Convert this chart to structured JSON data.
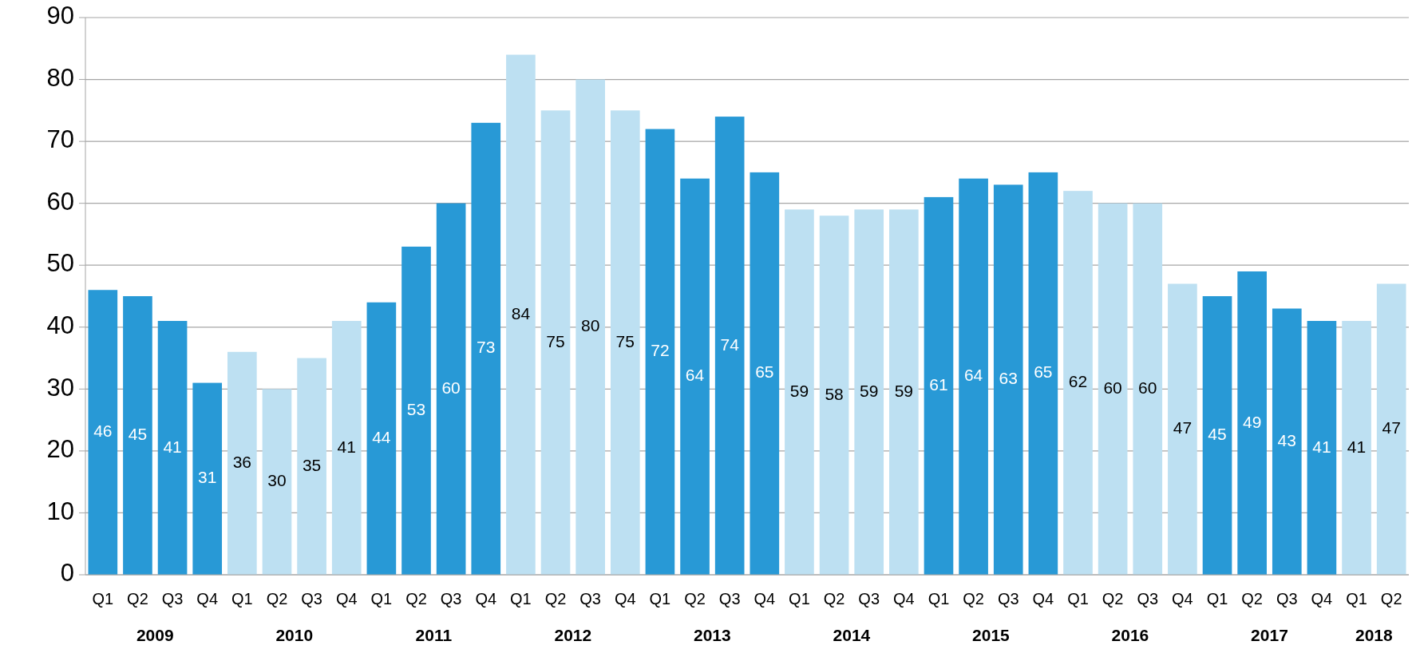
{
  "chart_data": {
    "type": "bar",
    "categories": [
      "Q1",
      "Q2",
      "Q3",
      "Q4",
      "Q1",
      "Q2",
      "Q3",
      "Q4",
      "Q1",
      "Q2",
      "Q3",
      "Q4",
      "Q1",
      "Q2",
      "Q3",
      "Q4",
      "Q1",
      "Q2",
      "Q3",
      "Q4",
      "Q1",
      "Q2",
      "Q3",
      "Q4",
      "Q1",
      "Q2",
      "Q3",
      "Q4",
      "Q1",
      "Q2",
      "Q3",
      "Q4",
      "Q1",
      "Q2",
      "Q3",
      "Q4",
      "Q1",
      "Q2"
    ],
    "values": [
      46,
      45,
      41,
      31,
      36,
      30,
      35,
      41,
      44,
      53,
      60,
      73,
      84,
      75,
      80,
      75,
      72,
      64,
      74,
      65,
      59,
      58,
      59,
      59,
      61,
      64,
      63,
      65,
      62,
      60,
      60,
      47,
      45,
      49,
      43,
      41,
      41,
      47
    ],
    "colors": [
      "#2899d6",
      "#2899d6",
      "#2899d6",
      "#2899d6",
      "#bde0f2",
      "#bde0f2",
      "#bde0f2",
      "#bde0f2",
      "#2899d6",
      "#2899d6",
      "#2899d6",
      "#2899d6",
      "#bde0f2",
      "#bde0f2",
      "#bde0f2",
      "#bde0f2",
      "#2899d6",
      "#2899d6",
      "#2899d6",
      "#2899d6",
      "#bde0f2",
      "#bde0f2",
      "#bde0f2",
      "#bde0f2",
      "#2899d6",
      "#2899d6",
      "#2899d6",
      "#2899d6",
      "#bde0f2",
      "#bde0f2",
      "#bde0f2",
      "#bde0f2",
      "#2899d6",
      "#2899d6",
      "#2899d6",
      "#2899d6",
      "#bde0f2",
      "#bde0f2"
    ],
    "annotations": [
      "2009",
      "2010",
      "2011",
      "2012",
      "2013",
      "2014",
      "2015",
      "2016",
      "2017",
      "2018"
    ],
    "ylim": [
      0,
      90
    ],
    "yticks": [
      0,
      10,
      20,
      30,
      40,
      50,
      60,
      70,
      80,
      90
    ],
    "grid": "y",
    "data_labels": true
  }
}
